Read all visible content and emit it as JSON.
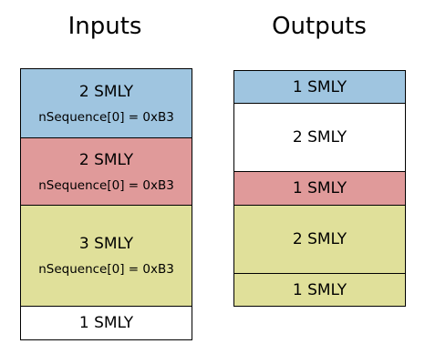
{
  "inputs": {
    "heading": "Inputs",
    "blocks": [
      {
        "amount": "2 SMLY",
        "sequence": "nSequence[0] = 0xB3",
        "color": "#9fc5e0"
      },
      {
        "amount": "2 SMLY",
        "sequence": "nSequence[0] = 0xB3",
        "color": "#e09a9a"
      },
      {
        "amount": "3 SMLY",
        "sequence": "nSequence[0] = 0xB3",
        "color": "#e0e09a"
      },
      {
        "amount": "1 SMLY",
        "sequence": "",
        "color": "#ffffff"
      }
    ]
  },
  "outputs": {
    "heading": "Outputs",
    "blocks": [
      {
        "amount": "1 SMLY",
        "color": "#9fc5e0"
      },
      {
        "amount": "2 SMLY",
        "color": "#ffffff"
      },
      {
        "amount": "1 SMLY",
        "color": "#e09a9a"
      },
      {
        "amount": "2 SMLY",
        "color": "#e0e09a"
      },
      {
        "amount": "1 SMLY",
        "color": "#e0e09a"
      }
    ]
  }
}
